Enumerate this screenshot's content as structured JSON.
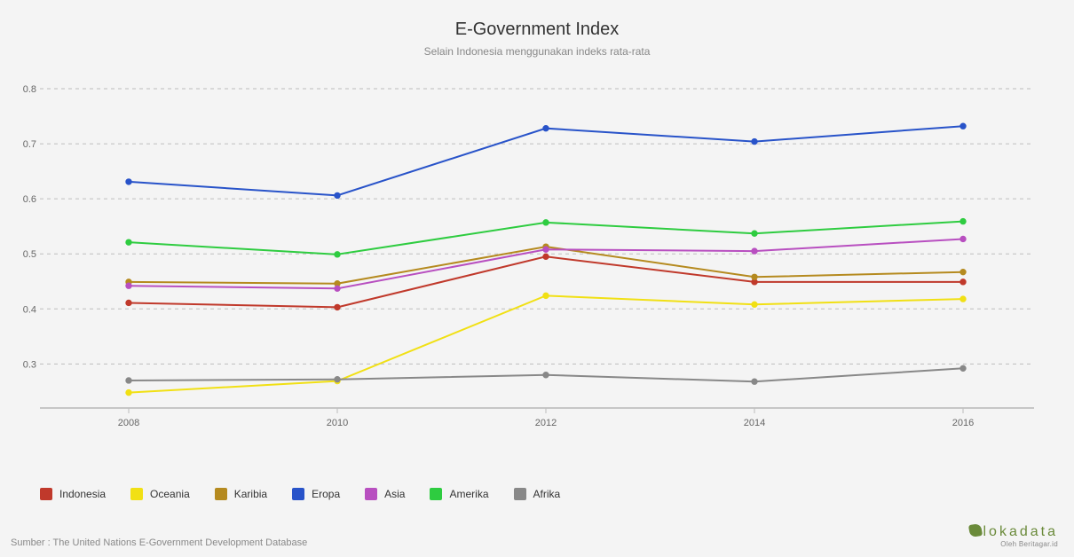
{
  "chart": {
    "type": "line",
    "title": "E-Government Index",
    "subtitle": "Selain Indonesia menggunakan indeks rata-rata",
    "title_fontsize": 20,
    "subtitle_fontsize": 12,
    "title_color": "#333333",
    "subtitle_color": "#888888",
    "background_color": "#f4f4f4",
    "grid_color": "#bdbdbd",
    "axis_label_color": "#666666",
    "axis_fontsize": 11,
    "x": {
      "categories": [
        "2008",
        "2010",
        "2012",
        "2014",
        "2016"
      ]
    },
    "y": {
      "min": 0.22,
      "max": 0.8,
      "ticks": [
        0.3,
        0.4,
        0.5,
        0.6,
        0.7,
        0.8
      ]
    },
    "line_width": 2,
    "marker_radius": 3.2,
    "series": [
      {
        "name": "Indonesia",
        "color": "#c0392b",
        "values": [
          0.411,
          0.403,
          0.495,
          0.449,
          0.449
        ]
      },
      {
        "name": "Oceania",
        "color": "#f1e014",
        "values": [
          0.248,
          0.269,
          0.424,
          0.408,
          0.418
        ]
      },
      {
        "name": "Karibia",
        "color": "#b58a1f",
        "values": [
          0.449,
          0.446,
          0.513,
          0.458,
          0.467
        ]
      },
      {
        "name": "Eropa",
        "color": "#2853c9",
        "values": [
          0.631,
          0.606,
          0.728,
          0.704,
          0.732
        ]
      },
      {
        "name": "Asia",
        "color": "#b84fc0",
        "values": [
          0.442,
          0.437,
          0.508,
          0.505,
          0.527
        ]
      },
      {
        "name": "Amerika",
        "color": "#2ecc40",
        "values": [
          0.521,
          0.499,
          0.557,
          0.537,
          0.559
        ]
      },
      {
        "name": "Afrika",
        "color": "#888888",
        "values": [
          0.27,
          0.272,
          0.28,
          0.268,
          0.292
        ]
      }
    ]
  },
  "source_text": "Sumber : The United Nations E-Government Development Database",
  "brand": {
    "name": "lokadata",
    "sub": "Oleh Beritagar.id",
    "color": "#6a8a3a"
  }
}
